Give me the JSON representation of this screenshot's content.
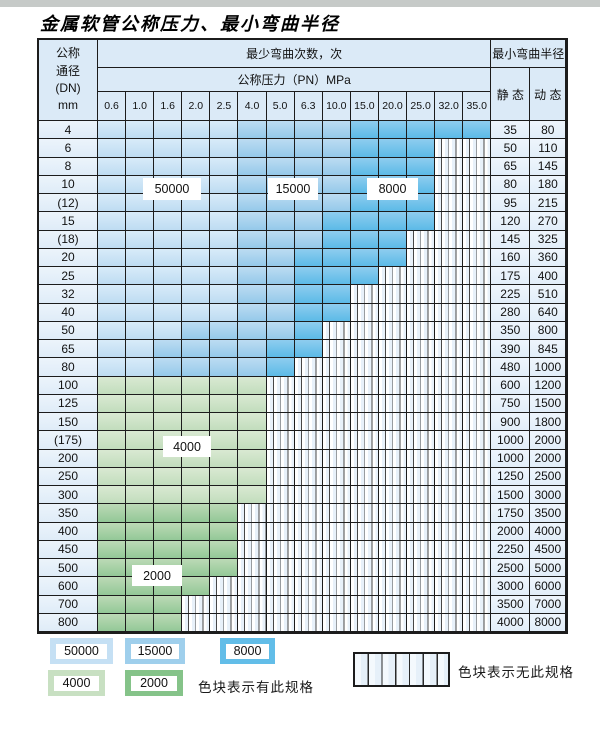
{
  "title": "金属软管公称压力、最小弯曲半径",
  "table": {
    "header": {
      "dn_lines": [
        "公称",
        "通径",
        "(DN)",
        "mm"
      ],
      "bend_cycles_label": "最少弯曲次数，次",
      "pressure_label": "公称压力（PN）MPa",
      "min_bend_radius_label": "最小弯曲半径",
      "static_label": "静 态",
      "dynamic_label": "动 态",
      "pressures": [
        "0.6",
        "1.0",
        "1.6",
        "2.0",
        "2.5",
        "4.0",
        "5.0",
        "6.3",
        "10.0",
        "15.0",
        "20.0",
        "25.0",
        "32.0",
        "35.0"
      ]
    },
    "rows": [
      {
        "dn": "4",
        "bands": [
          [
            50000,
            5
          ],
          [
            15000,
            9
          ],
          [
            8000,
            14
          ]
        ],
        "static": "35",
        "dynamic": "80"
      },
      {
        "dn": "6",
        "bands": [
          [
            50000,
            5
          ],
          [
            15000,
            9
          ],
          [
            8000,
            12
          ]
        ],
        "static": "50",
        "dynamic": "110"
      },
      {
        "dn": "8",
        "bands": [
          [
            50000,
            5
          ],
          [
            15000,
            9
          ],
          [
            8000,
            12
          ]
        ],
        "static": "65",
        "dynamic": "145"
      },
      {
        "dn": "10",
        "bands": [
          [
            50000,
            5
          ],
          [
            15000,
            9
          ],
          [
            8000,
            12
          ]
        ],
        "static": "80",
        "dynamic": "180"
      },
      {
        "dn": "(12)",
        "bands": [
          [
            50000,
            5
          ],
          [
            15000,
            9
          ],
          [
            8000,
            12
          ]
        ],
        "static": "95",
        "dynamic": "215"
      },
      {
        "dn": "15",
        "bands": [
          [
            50000,
            5
          ],
          [
            15000,
            8
          ],
          [
            8000,
            12
          ]
        ],
        "static": "120",
        "dynamic": "270"
      },
      {
        "dn": "(18)",
        "bands": [
          [
            50000,
            5
          ],
          [
            15000,
            8
          ],
          [
            8000,
            11
          ]
        ],
        "static": "145",
        "dynamic": "325"
      },
      {
        "dn": "20",
        "bands": [
          [
            50000,
            5
          ],
          [
            15000,
            7
          ],
          [
            8000,
            11
          ]
        ],
        "static": "160",
        "dynamic": "360"
      },
      {
        "dn": "25",
        "bands": [
          [
            50000,
            5
          ],
          [
            15000,
            7
          ],
          [
            8000,
            10
          ]
        ],
        "static": "175",
        "dynamic": "400"
      },
      {
        "dn": "32",
        "bands": [
          [
            50000,
            5
          ],
          [
            15000,
            7
          ],
          [
            8000,
            9
          ]
        ],
        "static": "225",
        "dynamic": "510"
      },
      {
        "dn": "40",
        "bands": [
          [
            50000,
            5
          ],
          [
            15000,
            7
          ],
          [
            8000,
            9
          ]
        ],
        "static": "280",
        "dynamic": "640"
      },
      {
        "dn": "50",
        "bands": [
          [
            50000,
            3
          ],
          [
            15000,
            7
          ],
          [
            8000,
            8
          ]
        ],
        "static": "350",
        "dynamic": "800"
      },
      {
        "dn": "65",
        "bands": [
          [
            50000,
            2
          ],
          [
            15000,
            6
          ],
          [
            8000,
            8
          ]
        ],
        "static": "390",
        "dynamic": "845"
      },
      {
        "dn": "80",
        "bands": [
          [
            50000,
            2
          ],
          [
            15000,
            6
          ],
          [
            8000,
            7
          ]
        ],
        "static": "480",
        "dynamic": "1000"
      },
      {
        "dn": "100",
        "bands": [
          [
            4000,
            6
          ]
        ],
        "static": "600",
        "dynamic": "1200"
      },
      {
        "dn": "125",
        "bands": [
          [
            4000,
            6
          ]
        ],
        "static": "750",
        "dynamic": "1500"
      },
      {
        "dn": "150",
        "bands": [
          [
            4000,
            6
          ]
        ],
        "static": "900",
        "dynamic": "1800"
      },
      {
        "dn": "(175)",
        "bands": [
          [
            4000,
            6
          ]
        ],
        "static": "1000",
        "dynamic": "2000"
      },
      {
        "dn": "200",
        "bands": [
          [
            4000,
            6
          ]
        ],
        "static": "1000",
        "dynamic": "2000"
      },
      {
        "dn": "250",
        "bands": [
          [
            4000,
            6
          ]
        ],
        "static": "1250",
        "dynamic": "2500"
      },
      {
        "dn": "300",
        "bands": [
          [
            4000,
            6
          ]
        ],
        "static": "1500",
        "dynamic": "3000"
      },
      {
        "dn": "350",
        "bands": [
          [
            2000,
            5
          ]
        ],
        "static": "1750",
        "dynamic": "3500"
      },
      {
        "dn": "400",
        "bands": [
          [
            2000,
            5
          ]
        ],
        "static": "2000",
        "dynamic": "4000"
      },
      {
        "dn": "450",
        "bands": [
          [
            2000,
            5
          ]
        ],
        "static": "2250",
        "dynamic": "4500"
      },
      {
        "dn": "500",
        "bands": [
          [
            2000,
            5
          ]
        ],
        "static": "2500",
        "dynamic": "5000"
      },
      {
        "dn": "600",
        "bands": [
          [
            2000,
            4
          ]
        ],
        "static": "3000",
        "dynamic": "6000"
      },
      {
        "dn": "700",
        "bands": [
          [
            2000,
            3
          ]
        ],
        "static": "3500",
        "dynamic": "7000"
      },
      {
        "dn": "800",
        "bands": [
          [
            2000,
            3
          ]
        ],
        "static": "4000",
        "dynamic": "8000"
      }
    ],
    "zone_overlays": [
      {
        "label": "50000"
      },
      {
        "label": "15000"
      },
      {
        "label": "8000"
      },
      {
        "label": "4000"
      },
      {
        "label": "2000"
      }
    ]
  },
  "legend": {
    "items": [
      {
        "value": "50000",
        "color_key": "c50000"
      },
      {
        "value": "15000",
        "color_key": "c15000"
      },
      {
        "value": "8000",
        "color_key": "c8000"
      },
      {
        "value": "4000",
        "color_key": "c4000"
      },
      {
        "value": "2000",
        "color_key": "c2000"
      }
    ],
    "has_spec_text": "色块表示有此规格",
    "no_spec_text": "色块表示无此规格"
  },
  "colors": {
    "c50000": "#c5e0f4",
    "c15000": "#9fcfec",
    "c8000": "#62bde8",
    "c4000": "#c8e0c2",
    "c2000": "#85c389"
  }
}
